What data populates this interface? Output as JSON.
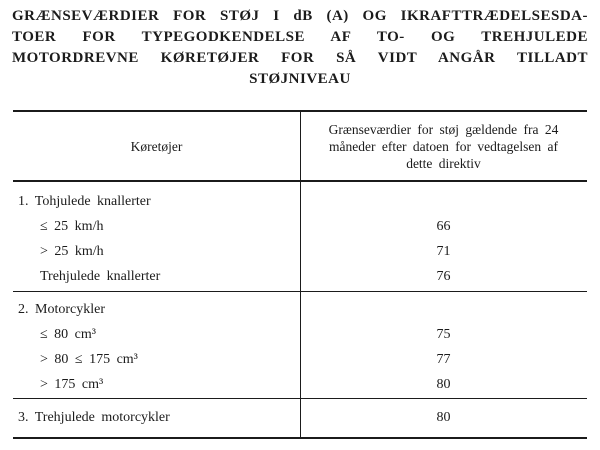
{
  "title": {
    "lines": [
      "GRÆNSEVÆRDIER FOR STØJ I dB (A) OG IKRAFTTRÆDELSESDA-",
      "TOER FOR TYPEGODKENDELSE AF TO- OG TREHJULEDE",
      "MOTORDREVNE KØRETØJER FOR SÅ VIDT ANGÅR TILLADT",
      "STØJNIVEAU"
    ]
  },
  "table": {
    "columns": [
      "Køretøjer",
      "Grænseværdier for støj gældende fra 24 måneder efter datoen for vedtagelsen af dette direktiv"
    ],
    "sections": [
      {
        "rows": [
          {
            "label": "1. Tohjulede knallerter",
            "value": ""
          },
          {
            "label": "≤ 25 km/h",
            "value": "66"
          },
          {
            "label": "> 25 km/h",
            "value": "71"
          },
          {
            "label": "Trehjulede knallerter",
            "value": "76"
          }
        ]
      },
      {
        "rows": [
          {
            "label": "2. Motorcykler",
            "value": ""
          },
          {
            "label": "≤ 80 cm³",
            "value": "75"
          },
          {
            "label": "> 80 ≤ 175 cm³",
            "value": "77"
          },
          {
            "label": "> 175 cm³",
            "value": "80"
          }
        ]
      },
      {
        "rows": [
          {
            "label": "3. Trehjulede motorcykler",
            "value": "80"
          }
        ]
      }
    ]
  }
}
